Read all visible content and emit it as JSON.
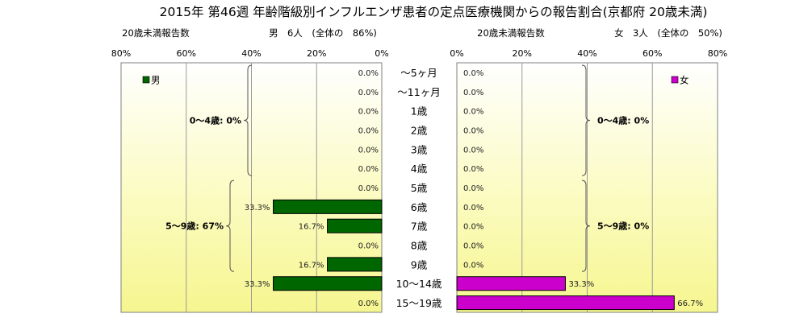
{
  "chart_data": {
    "type": "bar",
    "title": "2015年 第46週 年齢階級別インフルエンザ患者の定点医療機関からの報告割合(京都府 20歳未満)",
    "categories": [
      "～5ヶ月",
      "～11ヶ月",
      "1歳",
      "2歳",
      "3歳",
      "4歳",
      "5歳",
      "6歳",
      "7歳",
      "8歳",
      "9歳",
      "10～14歳",
      "15～19歳"
    ],
    "xlim": [
      0,
      80
    ],
    "ticks": [
      "80%",
      "60%",
      "40%",
      "20%",
      "0%"
    ],
    "ticks_right": [
      "0%",
      "20%",
      "40%",
      "60%",
      "80%"
    ],
    "male": {
      "caption": "20歳未満報告数",
      "header": "男　6人　(全体の　86%)",
      "legend": "男",
      "color": "#006600",
      "values": [
        0,
        0,
        0,
        0,
        0,
        0,
        0,
        33.3,
        16.7,
        0,
        16.7,
        33.3,
        0
      ],
      "labels": [
        "0.0%",
        "0.0%",
        "0.0%",
        "0.0%",
        "0.0%",
        "0.0%",
        "0.0%",
        "33.3%",
        "16.7%",
        "0.0%",
        "16.7%",
        "33.3%",
        "0.0%"
      ],
      "brackets": [
        {
          "label": "0～4歳: 0%",
          "from": 0,
          "to": 5
        },
        {
          "label": "5～9歳: 67%",
          "from": 6,
          "to": 10
        }
      ]
    },
    "female": {
      "caption": "20歳未満報告数",
      "header": "女　3人　(全体の　50%)",
      "legend": "女",
      "color": "#cc00cc",
      "values": [
        0,
        0,
        0,
        0,
        0,
        0,
        0,
        0,
        0,
        0,
        0,
        33.3,
        66.7
      ],
      "labels": [
        "0.0%",
        "0.0%",
        "0.0%",
        "0.0%",
        "0.0%",
        "0.0%",
        "0.0%",
        "0.0%",
        "0.0%",
        "0.0%",
        "0.0%",
        "33.3%",
        "66.7%"
      ],
      "brackets": [
        {
          "label": "0～4歳: 0%",
          "from": 0,
          "to": 5
        },
        {
          "label": "5～9歳: 0%",
          "from": 6,
          "to": 10
        }
      ]
    }
  }
}
